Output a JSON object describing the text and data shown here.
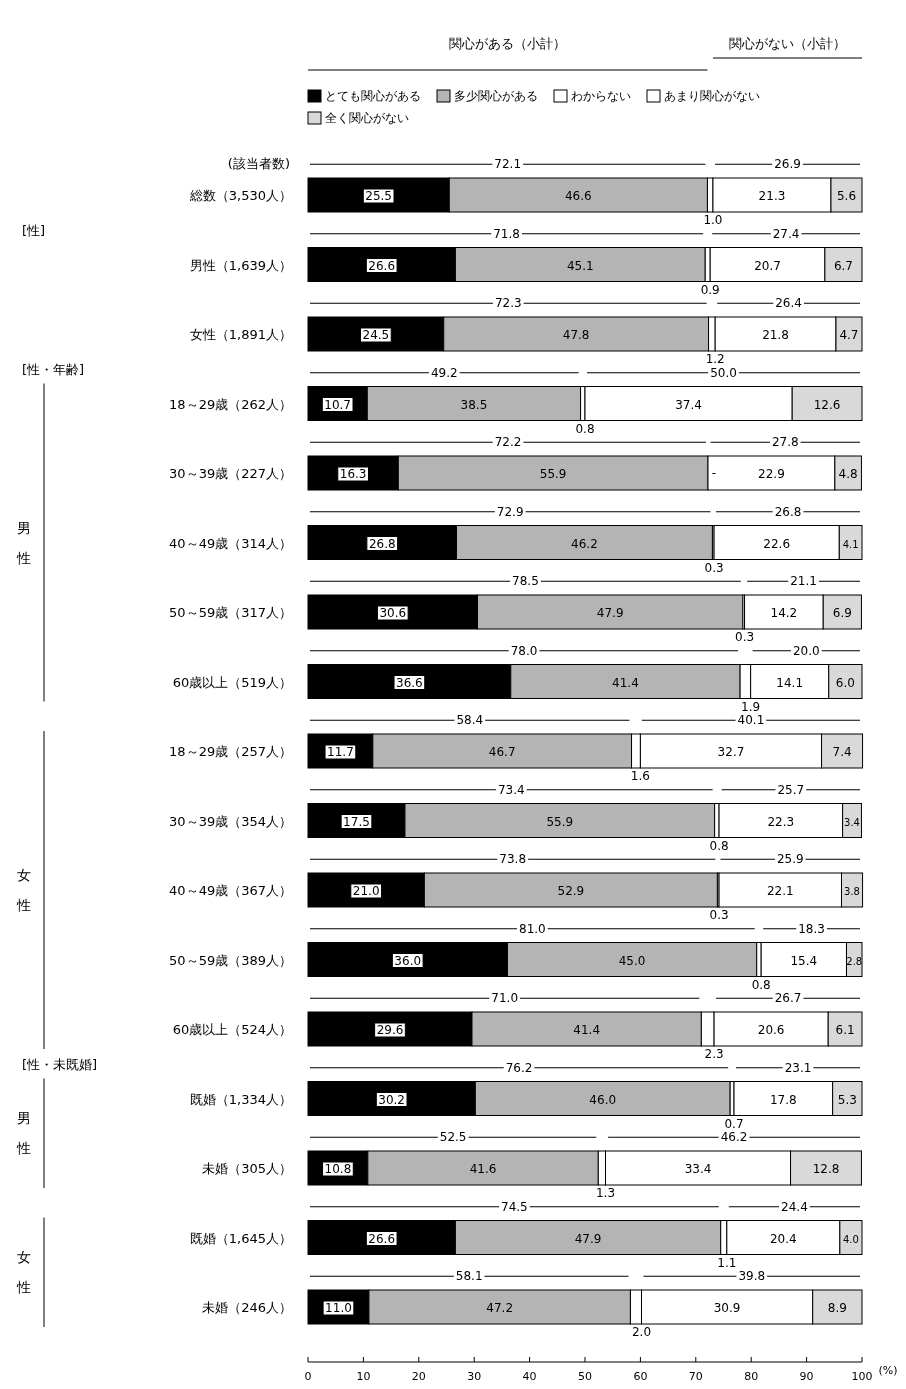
{
  "chart_data": {
    "type": "bar",
    "orientation": "horizontal",
    "stacked": true,
    "legend": "top",
    "categories": [
      "総数（3,530人）",
      "男性（1,639人）",
      "女性（1,891人）",
      "18～29歳（262人）",
      "30～39歳（227人）",
      "40～49歳（314人）",
      "50～59歳（317人）",
      "60歳以上（519人）",
      "18～29歳（257人）",
      "30～39歳（354人）",
      "40～49歳（367人）",
      "50～59歳（389人）",
      "60歳以上（524人）",
      "既婚（1,334人）",
      "未婚（305人）",
      "既婚（1,645人）",
      "未婚（246人）"
    ],
    "series": [
      {
        "name": "とても関心がある",
        "color": "#000000",
        "values": [
          25.5,
          26.6,
          24.5,
          10.7,
          16.3,
          26.8,
          30.6,
          36.6,
          11.7,
          17.5,
          21.0,
          36.0,
          29.6,
          30.2,
          10.8,
          26.6,
          11.0
        ],
        "value_labels": [
          "25.5",
          "26.6",
          "24.5",
          "10.7",
          "16.3",
          "26.8",
          "30.6",
          "36.6",
          "11.7",
          "17.5",
          "21.0",
          "36.0",
          "29.6",
          "30.2",
          "10.8",
          "26.6",
          "11.0"
        ]
      },
      {
        "name": "多少関心がある",
        "color": "#b4b4b4",
        "values": [
          46.6,
          45.1,
          47.8,
          38.5,
          55.9,
          46.2,
          47.9,
          41.4,
          46.7,
          55.9,
          52.9,
          45.0,
          41.4,
          46.0,
          41.6,
          47.9,
          47.2
        ],
        "value_labels": [
          "46.6",
          "45.1",
          "47.8",
          "38.5",
          "55.9",
          "46.2",
          "47.9",
          "41.4",
          "46.7",
          "55.9",
          "52.9",
          "45.0",
          "41.4",
          "46.0",
          "41.6",
          "47.9",
          "47.2"
        ]
      },
      {
        "name": "わからない",
        "color": "#ffffff",
        "values": [
          1.0,
          0.9,
          1.2,
          0.8,
          null,
          0.3,
          0.3,
          1.9,
          1.6,
          0.8,
          0.3,
          0.8,
          2.3,
          0.7,
          1.3,
          1.1,
          2.0
        ],
        "value_labels": [
          "1.0",
          "0.9",
          "1.2",
          "0.8",
          "-",
          "0.3",
          "0.3",
          "1.9",
          "1.6",
          "0.8",
          "0.3",
          "0.8",
          "2.3",
          "0.7",
          "1.3",
          "1.1",
          "2.0"
        ]
      },
      {
        "name": "あまり関心がない",
        "color": "#ffffff",
        "values": [
          21.3,
          20.7,
          21.8,
          37.4,
          22.9,
          22.6,
          14.2,
          14.1,
          32.7,
          22.3,
          22.1,
          15.4,
          20.6,
          17.8,
          33.4,
          20.4,
          30.9
        ],
        "value_labels": [
          "21.3",
          "20.7",
          "21.8",
          "37.4",
          "22.9",
          "22.6",
          "14.2",
          "14.1",
          "32.7",
          "22.3",
          "22.1",
          "15.4",
          "20.6",
          "17.8",
          "33.4",
          "20.4",
          "30.9"
        ]
      },
      {
        "name": "全く関心がない",
        "color": "#d9d9d9",
        "values": [
          5.6,
          6.7,
          4.7,
          12.6,
          4.8,
          4.1,
          6.9,
          6.0,
          7.4,
          3.4,
          3.8,
          2.8,
          6.1,
          5.3,
          12.8,
          4.0,
          8.9
        ],
        "value_labels": [
          "5.6",
          "6.7",
          "4.7",
          "12.6",
          "4.8",
          "4.1",
          "6.9",
          "6.0",
          "7.4",
          "3.4",
          "3.8",
          "2.8",
          "6.1",
          "5.3",
          "12.8",
          "4.0",
          "8.9"
        ]
      }
    ],
    "xlim": [
      0,
      100
    ],
    "xticks": [
      0,
      10,
      20,
      30,
      40,
      50,
      60,
      70,
      80,
      90,
      100
    ],
    "xlabel": "(%)",
    "grid": false,
    "annotations": [
      "関心がある（小計）",
      "関心がない（小計）",
      "(該当者数)",
      "[性]",
      "[性・年齢]",
      "[性・未既婚]",
      "男性",
      "女性",
      "男性",
      "女性",
      "72.1",
      "26.9",
      "71.8",
      "27.4",
      "72.3",
      "26.4",
      "49.2",
      "50.0",
      "72.2",
      "27.8",
      "72.9",
      "26.8",
      "78.5",
      "21.1",
      "78.0",
      "20.0",
      "58.4",
      "40.1",
      "73.4",
      "25.7",
      "73.8",
      "25.9",
      "81.0",
      "18.3",
      "71.0",
      "26.7",
      "76.2",
      "23.1",
      "52.5",
      "46.2",
      "74.5",
      "24.4",
      "58.1",
      "39.8"
    ]
  }
}
